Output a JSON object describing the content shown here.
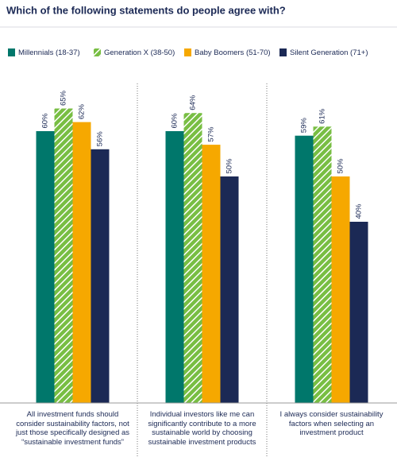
{
  "chart_data": {
    "type": "bar",
    "title": "Which of the following statements do people agree with?",
    "categories": [
      "All investment funds should consider sustainability factors, not just those specifically designed as “sustainable investment funds”",
      "Individual investors like me can significantly contribute to a more sustainable world by choosing sustainable investment products",
      "I always consider sustainability factors when selecting an investment product"
    ],
    "series": [
      {
        "name": "Millennials (18-37)",
        "color": "#00776b",
        "values": [
          60,
          60,
          59
        ],
        "value_labels": [
          "60%",
          "60%",
          "59%"
        ]
      },
      {
        "name": "Generation X (38-50)",
        "color": "#78be43",
        "hatch": true,
        "values": [
          65,
          64,
          61
        ],
        "value_labels": [
          "65%",
          "64%",
          "61%"
        ]
      },
      {
        "name": "Baby Boomers (51-70)",
        "color": "#f6a800",
        "values": [
          62,
          57,
          50
        ],
        "value_labels": [
          "62%",
          "57%",
          "50%"
        ]
      },
      {
        "name": "Silent Generation (71+)",
        "color": "#1b2955",
        "values": [
          56,
          50,
          40
        ],
        "value_labels": [
          "56%",
          "50%",
          "40%"
        ]
      }
    ]
  }
}
